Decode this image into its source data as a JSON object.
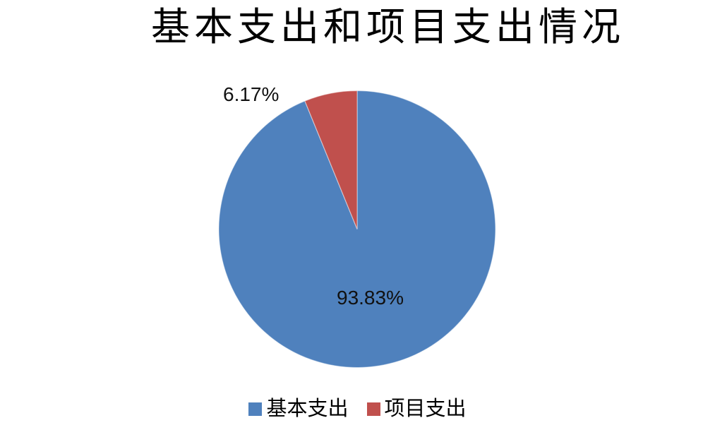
{
  "chart_data": {
    "type": "pie",
    "title": "基本支出和项目支出情况",
    "categories": [
      "基本支出",
      "项目支出"
    ],
    "values": [
      93.83,
      6.17
    ],
    "unit": "percent",
    "start_angle_deg": 0,
    "direction": "clockwise",
    "legend_position": "bottom",
    "background_color": "#FFFFFF",
    "series": [
      {
        "name": "基本支出",
        "value": 93.83,
        "data_label": "93.83%",
        "color": "#4F81BD",
        "label_position": "inside"
      },
      {
        "name": "项目支出",
        "value": 6.17,
        "data_label": "6.17%",
        "color": "#C0504D",
        "label_position": "outside"
      }
    ]
  }
}
